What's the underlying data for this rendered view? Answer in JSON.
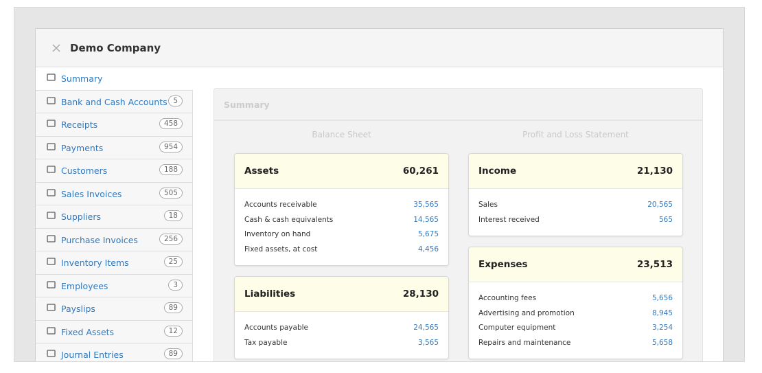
{
  "header": {
    "title": "Demo Company"
  },
  "nav": [
    {
      "label": "Summary"
    },
    {
      "label": "Bank and Cash Accounts",
      "count": "5"
    },
    {
      "label": "Receipts",
      "count": "458"
    },
    {
      "label": "Payments",
      "count": "954"
    },
    {
      "label": "Customers",
      "count": "188"
    },
    {
      "label": "Sales Invoices",
      "count": "505"
    },
    {
      "label": "Suppliers",
      "count": "18"
    },
    {
      "label": "Purchase Invoices",
      "count": "256"
    },
    {
      "label": "Inventory Items",
      "count": "25"
    },
    {
      "label": "Employees",
      "count": "3"
    },
    {
      "label": "Payslips",
      "count": "89"
    },
    {
      "label": "Fixed Assets",
      "count": "12"
    },
    {
      "label": "Journal Entries",
      "count": "89"
    }
  ],
  "panel": {
    "title": "Summary"
  },
  "columns": [
    {
      "title": "Balance Sheet",
      "cards": [
        {
          "title": "Assets",
          "total": "60,261",
          "rows": [
            {
              "label": "Accounts receivable",
              "value": "35,565"
            },
            {
              "label": "Cash & cash equivalents",
              "value": "14,565"
            },
            {
              "label": "Inventory on hand",
              "value": "5,675"
            },
            {
              "label": "Fixed assets, at cost",
              "value": "4,456"
            }
          ]
        },
        {
          "title": "Liabilities",
          "total": "28,130",
          "rows": [
            {
              "label": "Accounts payable",
              "value": "24,565"
            },
            {
              "label": "Tax payable",
              "value": "3,565"
            }
          ]
        }
      ]
    },
    {
      "title": "Profit and Loss Statement",
      "cards": [
        {
          "title": "Income",
          "total": "21,130",
          "rows": [
            {
              "label": "Sales",
              "value": "20,565"
            },
            {
              "label": "Interest received",
              "value": "565"
            }
          ]
        },
        {
          "title": "Expenses",
          "total": "23,513",
          "rows": [
            {
              "label": "Accounting fees",
              "value": "5,656"
            },
            {
              "label": "Advertising and promotion",
              "value": "8,945"
            },
            {
              "label": "Computer equipment",
              "value": "3,254"
            },
            {
              "label": "Repairs and maintenance",
              "value": "5,658"
            }
          ]
        }
      ]
    }
  ]
}
